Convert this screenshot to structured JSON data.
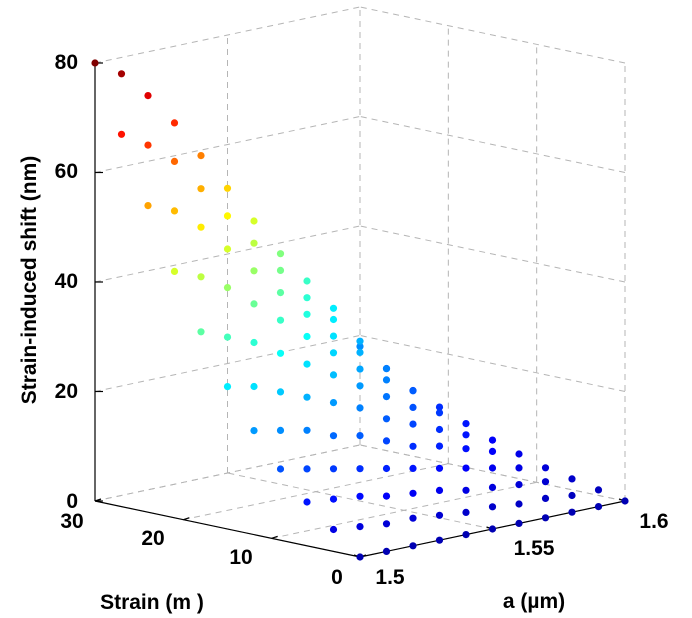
{
  "chart_data": {
    "type": "scatter3d",
    "title": "",
    "xlabel": "a (µm)",
    "ylabel": "Strain (m  )",
    "zlabel": "Strain-induced shift (nm)",
    "x_ticks": [
      "1.5",
      "1.55",
      "1.6"
    ],
    "y_ticks": [
      "0",
      "10",
      "20",
      "30"
    ],
    "z_ticks": [
      "0",
      "20",
      "40",
      "60",
      "80"
    ],
    "xlim": [
      1.5,
      1.6
    ],
    "ylim": [
      0,
      30
    ],
    "zlim": [
      0,
      80
    ],
    "grid": true,
    "colormap": "jet",
    "series": [
      {
        "a": 1.6,
        "strain": [
          0,
          3,
          6,
          9,
          12,
          15,
          18,
          21,
          24,
          27,
          30
        ],
        "shift": [
          0,
          1,
          2,
          3,
          4.5,
          6,
          8,
          10,
          12,
          15,
          18
        ]
      },
      {
        "a": 1.59,
        "strain": [
          0,
          3,
          6,
          9,
          12,
          15,
          18,
          21,
          24,
          27,
          30
        ],
        "shift": [
          0,
          1,
          2.5,
          4,
          6,
          8,
          11,
          14,
          17,
          21,
          26
        ]
      },
      {
        "a": 1.58,
        "strain": [
          0,
          3,
          6,
          9,
          12,
          15,
          18,
          21,
          24,
          27,
          30
        ],
        "shift": [
          0,
          1.5,
          3,
          5,
          7.5,
          10,
          13,
          17,
          21,
          26,
          32
        ]
      },
      {
        "a": 1.57,
        "strain": [
          0,
          3,
          6,
          9,
          12,
          15,
          18,
          21,
          24,
          27,
          30
        ],
        "shift": [
          0,
          1.5,
          3.5,
          6,
          9,
          12,
          16,
          20,
          25,
          31,
          38
        ]
      },
      {
        "a": 1.56,
        "strain": [
          0,
          3,
          6,
          9,
          12,
          15,
          18,
          21,
          24,
          27,
          30
        ],
        "shift": [
          0,
          2,
          4,
          7,
          10,
          14,
          19,
          24,
          30,
          37,
          45
        ]
      },
      {
        "a": 1.55,
        "strain": [
          0,
          3,
          6,
          9,
          12,
          15,
          18,
          21,
          24,
          27,
          30
        ],
        "shift": [
          0,
          2,
          5,
          8,
          12,
          17,
          22,
          28,
          35,
          43,
          52
        ]
      },
      {
        "a": 1.54,
        "strain": [
          0,
          3,
          6,
          9,
          12,
          15,
          18,
          21,
          24,
          27,
          30
        ],
        "shift": [
          0,
          2.5,
          5.5,
          9,
          14,
          19,
          25,
          32,
          40,
          49,
          59
        ]
      },
      {
        "a": 1.53,
        "strain": [
          0,
          3,
          6,
          9,
          12,
          15,
          18,
          21,
          24,
          27,
          30
        ],
        "shift": [
          0,
          3,
          6,
          10,
          15,
          21,
          28,
          36,
          45,
          55,
          66
        ]
      },
      {
        "a": 1.52,
        "strain": [
          0,
          3,
          6,
          9,
          12,
          15,
          18,
          21,
          24,
          27,
          30
        ],
        "shift": [
          0,
          3,
          7,
          11,
          17,
          23,
          31,
          40,
          50,
          61,
          72
        ]
      },
      {
        "a": 1.51,
        "strain": [
          0,
          3,
          6,
          9,
          12,
          15,
          18,
          21,
          24,
          27,
          30
        ],
        "shift": [
          0,
          3.5,
          7.5,
          12,
          18,
          25,
          33,
          43,
          54,
          65,
          77
        ]
      },
      {
        "a": 1.5,
        "strain": [
          0,
          3,
          6,
          9,
          12,
          15,
          18,
          21,
          24,
          27,
          30
        ],
        "shift": [
          0,
          4,
          8,
          13,
          19,
          26,
          35,
          45,
          56,
          68,
          80
        ]
      }
    ]
  }
}
